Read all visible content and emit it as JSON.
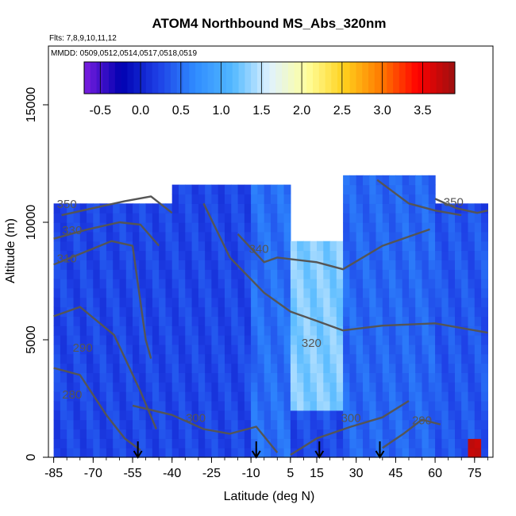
{
  "chart_data": {
    "type": "heatmap",
    "title": "ATOM4 Northbound MS_Abs_320nm",
    "subtitle_flights": "Flts: 7,8,9,10,11,12",
    "subtitle_dates": "MMDD: 0509,0512,0514,0517,0518,0519",
    "xlabel": "Latitude (deg N)",
    "ylabel": "Altitude (m)",
    "xlim": [
      -87,
      82
    ],
    "ylim": [
      0,
      17500
    ],
    "x_ticks": [
      -85,
      -70,
      -55,
      -40,
      -25,
      -10,
      5,
      15,
      30,
      45,
      60,
      75
    ],
    "y_ticks": [
      0,
      5000,
      10000,
      15000
    ],
    "colorbar": {
      "range": [
        -0.7,
        3.9
      ],
      "ticks": [
        -0.5,
        0.0,
        0.5,
        1.0,
        1.5,
        2.0,
        2.5,
        3.0,
        3.5
      ],
      "tick_labels": [
        "-0.5",
        "0.0",
        "0.5",
        "1.0",
        "1.5",
        "2.0",
        "2.5",
        "3.0",
        "3.5"
      ],
      "colors": [
        "#7b1fe0",
        "#0000b0",
        "#1e40e6",
        "#2f8cff",
        "#52b8ff",
        "#dff2ff",
        "#ffff9e",
        "#ffd21e",
        "#ff7a00",
        "#ff0000",
        "#9c1010"
      ]
    },
    "field_regions": [
      {
        "lat": [
          -85,
          -40
        ],
        "alt": [
          0,
          10500
        ],
        "value": -0.05
      },
      {
        "lat": [
          -40,
          -10
        ],
        "alt": [
          0,
          11500
        ],
        "value": 0.15
      },
      {
        "lat": [
          -10,
          5
        ],
        "alt": [
          0,
          11500
        ],
        "value": 0.5
      },
      {
        "lat": [
          5,
          25
        ],
        "alt": [
          2000,
          9000
        ],
        "value": 1.3
      },
      {
        "lat": [
          25,
          60
        ],
        "alt": [
          0,
          12000
        ],
        "value": 0.45
      },
      {
        "lat": [
          60,
          80
        ],
        "alt": [
          0,
          10500
        ],
        "value": 0.35
      }
    ],
    "peak": {
      "lat": 73.5,
      "alt": 300,
      "value": 3.8
    },
    "contours": [
      {
        "label": "350",
        "points": [
          [
            -82,
            10300
          ],
          [
            -70,
            10600
          ],
          [
            -58,
            10900
          ],
          [
            -48,
            11100
          ],
          [
            -40,
            10400
          ]
        ]
      },
      {
        "label": "330",
        "points": [
          [
            -85,
            9300
          ],
          [
            -72,
            9700
          ],
          [
            -60,
            10000
          ],
          [
            -52,
            9900
          ],
          [
            -45,
            9000
          ]
        ]
      },
      {
        "label": "310",
        "points": [
          [
            -85,
            8200
          ],
          [
            -74,
            8700
          ],
          [
            -63,
            9200
          ],
          [
            -55,
            9000
          ],
          [
            -50,
            5000
          ],
          [
            -48,
            4200
          ]
        ]
      },
      {
        "label": "290",
        "points": [
          [
            -85,
            6000
          ],
          [
            -75,
            6400
          ],
          [
            -62,
            5200
          ],
          [
            -52,
            2800
          ],
          [
            -46,
            1200
          ]
        ]
      },
      {
        "label": "280",
        "points": [
          [
            -85,
            3800
          ],
          [
            -75,
            3500
          ],
          [
            -65,
            1800
          ],
          [
            -58,
            800
          ],
          [
            -52,
            300
          ]
        ]
      },
      {
        "label": "300",
        "points": [
          [
            -55,
            2200
          ],
          [
            -40,
            1800
          ],
          [
            -28,
            1200
          ],
          [
            -18,
            1000
          ],
          [
            -8,
            1300
          ],
          [
            0,
            200
          ]
        ]
      },
      {
        "label": "340",
        "points": [
          [
            -15,
            9500
          ],
          [
            -5,
            8300
          ],
          [
            0,
            8500
          ],
          [
            15,
            8300
          ],
          [
            25,
            8000
          ],
          [
            40,
            9000
          ],
          [
            58,
            9700
          ]
        ]
      },
      {
        "label": "320",
        "points": [
          [
            -28,
            10800
          ],
          [
            -18,
            8500
          ],
          [
            -5,
            7000
          ],
          [
            5,
            6200
          ],
          [
            15,
            5800
          ],
          [
            25,
            5400
          ],
          [
            40,
            5600
          ],
          [
            60,
            5700
          ],
          [
            80,
            5300
          ]
        ]
      },
      {
        "label": "300",
        "points": [
          [
            5,
            100
          ],
          [
            15,
            800
          ],
          [
            28,
            1300
          ],
          [
            40,
            1700
          ],
          [
            50,
            2400
          ]
        ]
      },
      {
        "label": "290",
        "points": [
          [
            40,
            400
          ],
          [
            48,
            1000
          ],
          [
            55,
            1600
          ],
          [
            62,
            1400
          ]
        ]
      },
      {
        "label": "330",
        "points": [
          [
            38,
            11800
          ],
          [
            50,
            10800
          ],
          [
            60,
            10500
          ],
          [
            70,
            10300
          ]
        ]
      },
      {
        "label": "350",
        "points": [
          [
            60,
            11000
          ],
          [
            68,
            10600
          ],
          [
            76,
            10400
          ],
          [
            80,
            10500
          ]
        ]
      }
    ],
    "contour_labels": [
      {
        "text": "350",
        "lat": -80,
        "alt": 10600
      },
      {
        "text": "330",
        "lat": -78,
        "alt": 9500
      },
      {
        "text": "310",
        "lat": -80,
        "alt": 8300
      },
      {
        "text": "290",
        "lat": -74,
        "alt": 4500
      },
      {
        "text": "280",
        "lat": -78,
        "alt": 2500
      },
      {
        "text": "300",
        "lat": -31,
        "alt": 1500
      },
      {
        "text": "340",
        "lat": -7,
        "alt": 8700
      },
      {
        "text": "320",
        "lat": 13,
        "alt": 4700
      },
      {
        "text": "300",
        "lat": 28,
        "alt": 1500
      },
      {
        "text": "290",
        "lat": 55,
        "alt": 1400
      },
      {
        "text": "350",
        "lat": 67,
        "alt": 10700
      }
    ],
    "arrows_lat": [
      -53,
      -8,
      16,
      39
    ]
  }
}
